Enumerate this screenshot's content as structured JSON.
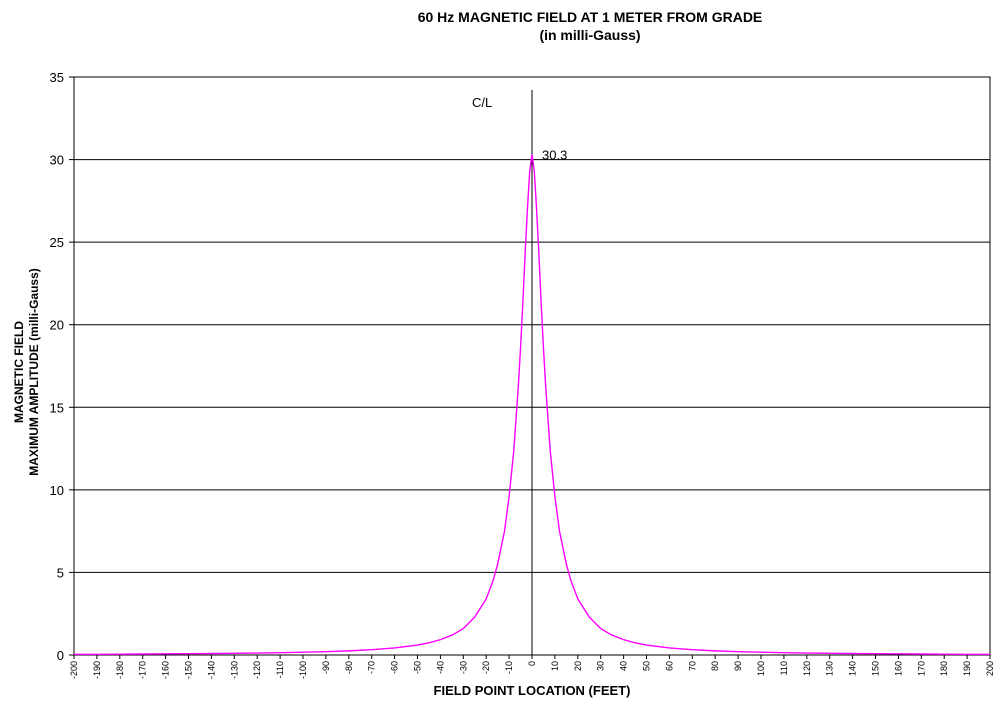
{
  "chart_data": {
    "type": "line",
    "title": "60 Hz MAGNETIC FIELD AT 1 METER FROM GRADE",
    "subtitle": "(in milli-Gauss)",
    "xlabel": "FIELD POINT LOCATION (FEET)",
    "ylabel_line1": "MAGNETIC FIELD",
    "ylabel_line2": "MAXIMUM AMPLITUDE (milli-Gauss)",
    "xlim": [
      -200,
      200
    ],
    "ylim": [
      0,
      35
    ],
    "x_tick_step": 10,
    "y_tick_step": 5,
    "grid": "horizontal",
    "line_color": "#ff00ff",
    "annotations": [
      {
        "id": "centerline",
        "text": "C/L",
        "x": 0
      },
      {
        "id": "peak",
        "text": "30.3",
        "x": 0,
        "y": 30.3
      }
    ],
    "series": [
      {
        "x": [
          -200,
          -190,
          -180,
          -170,
          -160,
          -150,
          -140,
          -130,
          -120,
          -110,
          -100,
          -90,
          -80,
          -70,
          -60,
          -50,
          -45,
          -40,
          -35,
          -30,
          -25,
          -20,
          -17,
          -15,
          -12,
          -10,
          -8,
          -6,
          -5,
          -4,
          -3,
          -2,
          -1,
          0,
          1,
          2,
          3,
          4,
          5,
          6,
          8,
          10,
          12,
          15,
          17,
          20,
          25,
          30,
          35,
          40,
          45,
          50,
          60,
          70,
          80,
          90,
          100,
          110,
          120,
          130,
          140,
          150,
          160,
          170,
          180,
          190,
          200
        ],
        "y": [
          0.04,
          0.04,
          0.05,
          0.06,
          0.07,
          0.08,
          0.09,
          0.1,
          0.12,
          0.14,
          0.17,
          0.2,
          0.25,
          0.32,
          0.43,
          0.6,
          0.74,
          0.93,
          1.2,
          1.6,
          2.3,
          3.4,
          4.5,
          5.5,
          7.5,
          9.6,
          12.3,
          16.2,
          18.6,
          21.3,
          24.3,
          27.0,
          29.3,
          30.3,
          29.3,
          27.0,
          24.3,
          21.3,
          18.6,
          16.2,
          12.3,
          9.6,
          7.5,
          5.5,
          4.5,
          3.4,
          2.3,
          1.6,
          1.2,
          0.93,
          0.74,
          0.6,
          0.43,
          0.32,
          0.25,
          0.2,
          0.17,
          0.14,
          0.12,
          0.1,
          0.09,
          0.08,
          0.07,
          0.06,
          0.05,
          0.04,
          0.04
        ]
      }
    ]
  }
}
